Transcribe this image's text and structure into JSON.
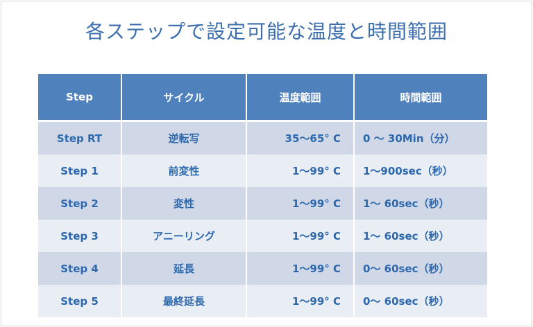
{
  "title": "各ステップで設定可能な温度と時間範囲",
  "colors": {
    "header_bg": "#4f81bd",
    "row_odd": "#d0d8e8",
    "row_even": "#e9edf4",
    "text": "#2c68ad",
    "title": "#3d6fae"
  },
  "table": {
    "headers": [
      "Step",
      "サイクル",
      "温度範囲",
      "時間範囲"
    ],
    "rows": [
      {
        "step": "Step RT",
        "cycle": "逆転写",
        "temp": "35～65° C",
        "time": "0 ～ 30Min（分）"
      },
      {
        "step": "Step 1",
        "cycle": "前変性",
        "temp": "1～99° C",
        "time": "1～900sec（秒）"
      },
      {
        "step": "Step 2",
        "cycle": "変性",
        "temp": "1～99° C",
        "time": "1～ 60sec（秒）"
      },
      {
        "step": "Step 3",
        "cycle": "アニーリング",
        "temp": "1～99° C",
        "time": "1～ 60sec（秒）"
      },
      {
        "step": "Step 4",
        "cycle": "延長",
        "temp": "1～99° C",
        "time": "0～ 60sec（秒）"
      },
      {
        "step": "Step 5",
        "cycle": "最終延長",
        "temp": "1～99° C",
        "time": "0～ 60sec（秒）"
      }
    ]
  }
}
